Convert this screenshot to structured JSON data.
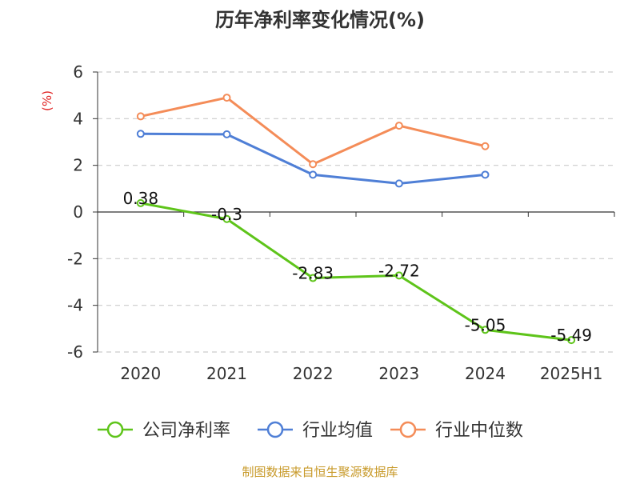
{
  "chart_data": {
    "type": "line",
    "title": "历年净利率变化情况(%)",
    "ylabel": "(%)",
    "xlabel": "",
    "ylim": [
      -6,
      6
    ],
    "yticks": [
      6,
      4,
      2,
      0,
      -2,
      -4,
      -6
    ],
    "grid": true,
    "legend_position": "bottom",
    "categories": [
      "2020",
      "2021",
      "2022",
      "2023",
      "2024",
      "2025H1"
    ],
    "series": [
      {
        "name": "公司净利率",
        "color": "#5ec41a",
        "values": [
          0.38,
          -0.3,
          -2.83,
          -2.72,
          -5.05,
          -5.49
        ],
        "labels": [
          "0.38",
          "-0.3",
          "-2.83",
          "-2.72",
          "-5.05",
          "-5.49"
        ]
      },
      {
        "name": "行业均值",
        "color": "#4f7fd6",
        "values": [
          3.35,
          3.33,
          1.6,
          1.22,
          1.6,
          null
        ]
      },
      {
        "name": "行业中位数",
        "color": "#f48c58",
        "values": [
          4.1,
          4.9,
          2.05,
          3.7,
          2.82,
          null
        ]
      }
    ]
  },
  "colors": {
    "ylabel": "#e02020",
    "source": "#c89a2a",
    "grid": "#cccccc",
    "axis": "#333333"
  },
  "source_text": "制图数据来自恒生聚源数据库"
}
